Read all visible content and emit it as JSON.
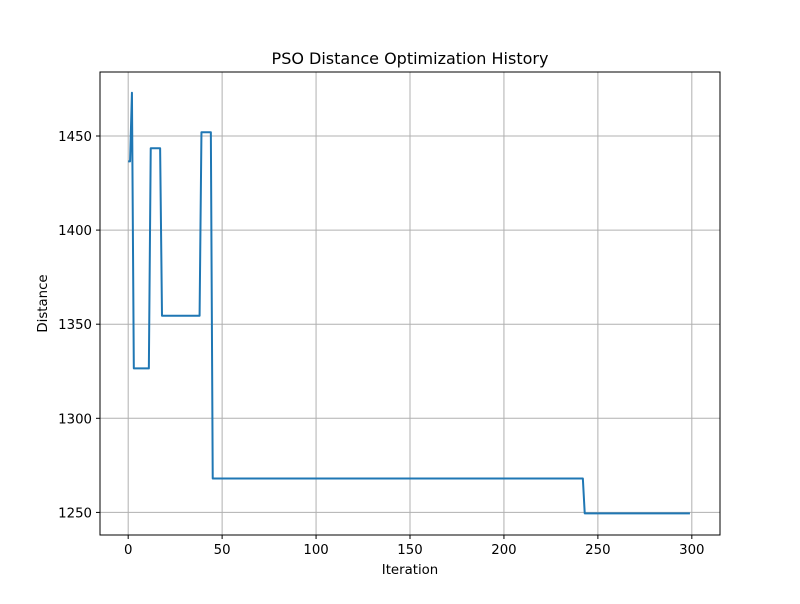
{
  "chart_data": {
    "type": "line",
    "title": "PSO Distance Optimization History",
    "xlabel": "Iteration",
    "ylabel": "Distance",
    "xlim": [
      -15,
      315
    ],
    "ylim": [
      1238,
      1484
    ],
    "xticks": [
      0,
      50,
      100,
      150,
      200,
      250,
      300
    ],
    "yticks": [
      1250,
      1300,
      1350,
      1400,
      1450
    ],
    "grid": true,
    "series": [
      {
        "color": "#1f77b4",
        "x": [
          0,
          1,
          2,
          3,
          11,
          12,
          17,
          18,
          38,
          39,
          44,
          45,
          242,
          243,
          299
        ],
        "values": [
          1436.5,
          1436.5,
          1473,
          1326.5,
          1326.5,
          1443.5,
          1443.5,
          1354.5,
          1354.5,
          1452,
          1452,
          1268,
          1268,
          1249.5,
          1249.5
        ]
      }
    ]
  }
}
